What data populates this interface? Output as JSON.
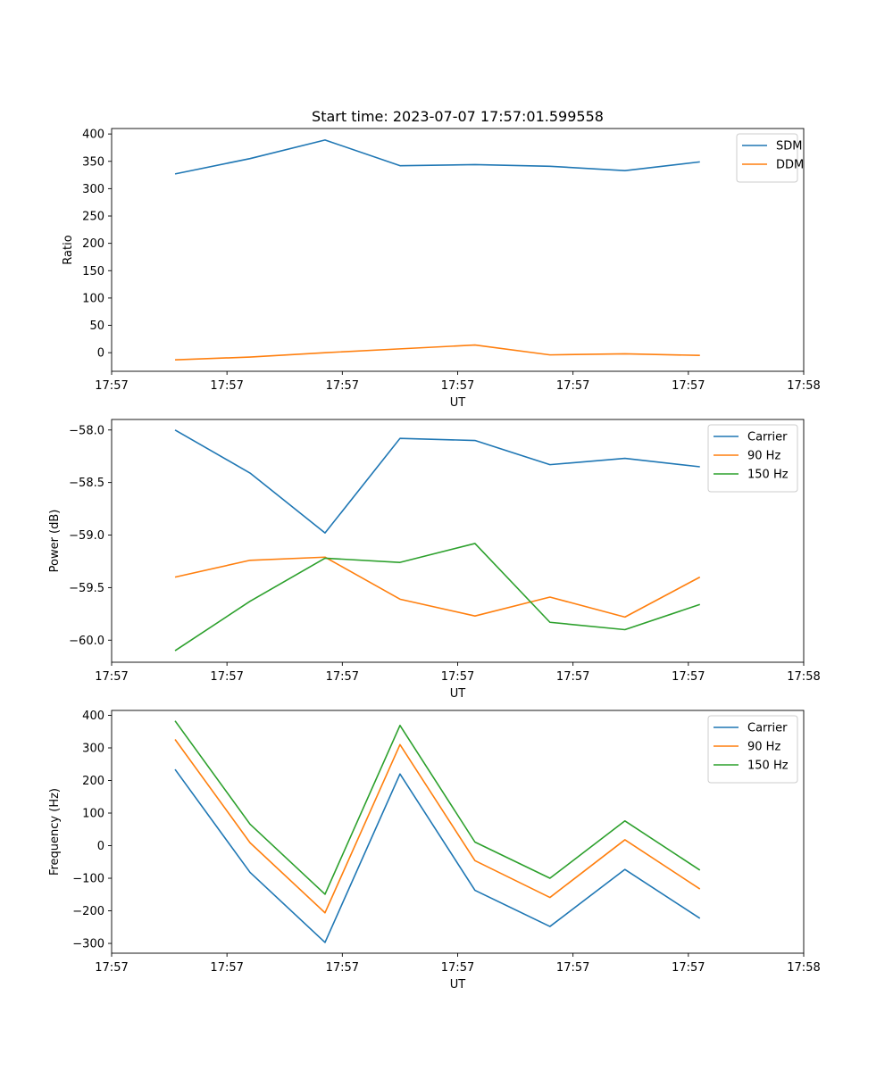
{
  "figure_title": "Start time: 2023-07-07 17:57:01.599558",
  "chart_data": [
    {
      "type": "line",
      "title": "Start time: 2023-07-07 17:57:01.599558",
      "xlabel": "UT",
      "ylabel": "Ratio",
      "x": [
        0.55,
        1.2,
        1.85,
        2.5,
        3.15,
        3.8,
        4.45,
        5.1
      ],
      "xlim": [
        0,
        6
      ],
      "xticks": [
        0,
        1,
        2,
        3,
        4,
        5,
        6
      ],
      "xtick_labels": [
        "17:57",
        "17:57",
        "17:57",
        "17:57",
        "17:57",
        "17:57",
        "17:58"
      ],
      "ylim": [
        -34,
        410
      ],
      "yticks": [
        0,
        50,
        100,
        150,
        200,
        250,
        300,
        350,
        400
      ],
      "ytick_labels": [
        "0",
        "50",
        "100",
        "150",
        "200",
        "250",
        "300",
        "350",
        "400"
      ],
      "legend": "top-right",
      "series": [
        {
          "name": "SDM",
          "color": "#1f77b4",
          "values": [
            327,
            355,
            389,
            342,
            344,
            341,
            333,
            349
          ]
        },
        {
          "name": "DDM",
          "color": "#ff7f0e",
          "values": [
            -13,
            -8,
            0,
            7,
            14,
            -4,
            -2,
            -5
          ]
        }
      ]
    },
    {
      "type": "line",
      "title": "",
      "xlabel": "UT",
      "ylabel": "Power (dB)",
      "x": [
        0.55,
        1.2,
        1.85,
        2.5,
        3.15,
        3.8,
        4.45,
        5.1
      ],
      "xlim": [
        0,
        6
      ],
      "xticks": [
        0,
        1,
        2,
        3,
        4,
        5,
        6
      ],
      "xtick_labels": [
        "17:57",
        "17:57",
        "17:57",
        "17:57",
        "17:57",
        "17:57",
        "17:58"
      ],
      "ylim": [
        -60.21,
        -57.9
      ],
      "yticks": [
        -60.0,
        -59.5,
        -59.0,
        -58.5,
        -58.0
      ],
      "ytick_labels": [
        "−60.0",
        "−59.5",
        "−59.0",
        "−58.5",
        "−58.0"
      ],
      "legend": "top-right",
      "series": [
        {
          "name": "Carrier",
          "color": "#1f77b4",
          "values": [
            -58.0,
            -58.41,
            -58.98,
            -58.08,
            -58.1,
            -58.33,
            -58.27,
            -58.35
          ]
        },
        {
          "name": "90 Hz",
          "color": "#ff7f0e",
          "values": [
            -59.4,
            -59.24,
            -59.21,
            -59.61,
            -59.77,
            -59.59,
            -59.78,
            -59.4
          ]
        },
        {
          "name": "150 Hz",
          "color": "#2ca02c",
          "values": [
            -60.1,
            -59.63,
            -59.22,
            -59.26,
            -59.08,
            -59.83,
            -59.9,
            -59.66
          ]
        }
      ]
    },
    {
      "type": "line",
      "title": "",
      "xlabel": "UT",
      "ylabel": "Frequency (Hz)",
      "x": [
        0.55,
        1.2,
        1.85,
        2.5,
        3.15,
        3.8,
        4.45,
        5.1
      ],
      "xlim": [
        0,
        6
      ],
      "xticks": [
        0,
        1,
        2,
        3,
        4,
        5,
        6
      ],
      "xtick_labels": [
        "17:57",
        "17:57",
        "17:57",
        "17:57",
        "17:57",
        "17:57",
        "17:58"
      ],
      "ylim": [
        -330,
        415
      ],
      "yticks": [
        -300,
        -200,
        -100,
        0,
        100,
        200,
        300,
        400
      ],
      "ytick_labels": [
        "−300",
        "−200",
        "−100",
        "0",
        "100",
        "200",
        "300",
        "400"
      ],
      "legend": "top-right",
      "series": [
        {
          "name": "Carrier",
          "color": "#1f77b4",
          "values": [
            234,
            -82,
            -297,
            220,
            -137,
            -248,
            -73,
            -223
          ]
        },
        {
          "name": "90 Hz",
          "color": "#ff7f0e",
          "values": [
            326,
            9,
            -206,
            310,
            -46,
            -159,
            18,
            -133
          ]
        },
        {
          "name": "150 Hz",
          "color": "#2ca02c",
          "values": [
            383,
            66,
            -149,
            369,
            11,
            -100,
            76,
            -75
          ]
        }
      ]
    }
  ]
}
